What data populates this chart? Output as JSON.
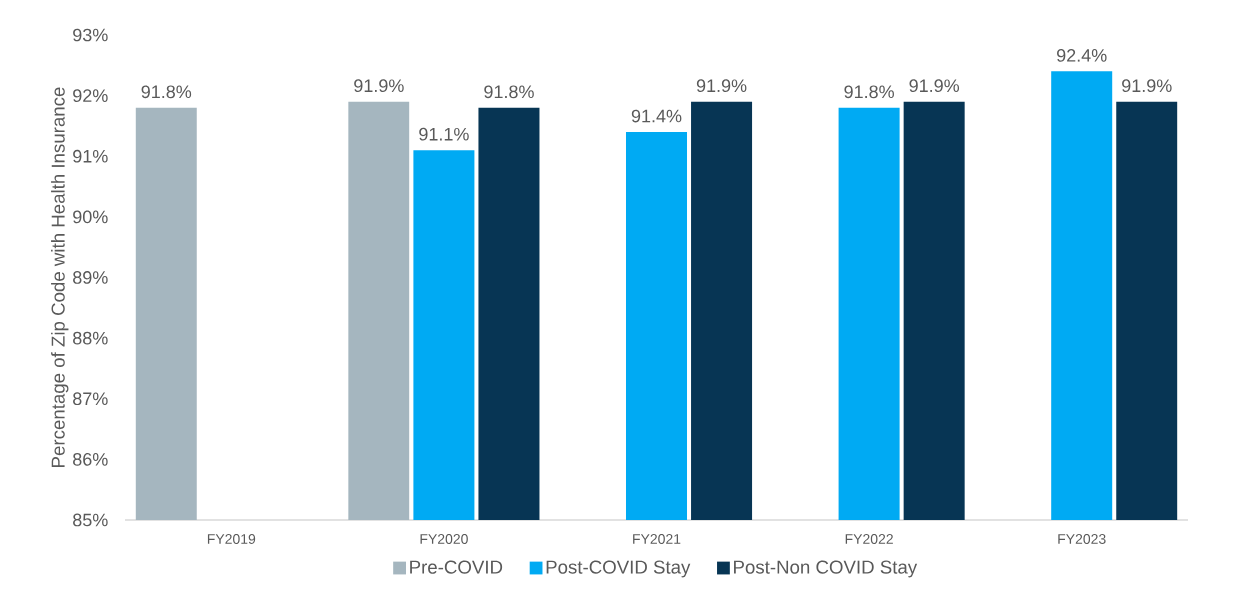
{
  "chart_data": {
    "type": "bar",
    "ylabel": "Percentage of Zip Code with Health Insurance",
    "categories": [
      "FY2019",
      "FY2020",
      "FY2021",
      "FY2022",
      "FY2023"
    ],
    "series": [
      {
        "name": "Pre-COVID",
        "color": "#a5b6bf",
        "values": [
          91.8,
          91.9,
          null,
          null,
          null
        ],
        "value_labels": [
          "91.8%",
          "91.9%",
          null,
          null,
          null
        ]
      },
      {
        "name": "Post-COVID Stay",
        "color": "#00aaf3",
        "values": [
          null,
          91.1,
          91.4,
          91.8,
          92.4
        ],
        "value_labels": [
          null,
          "91.1%",
          "91.4%",
          "91.8%",
          "92.4%"
        ]
      },
      {
        "name": "Post-Non COVID Stay",
        "color": "#073554",
        "values": [
          null,
          91.8,
          91.9,
          91.9,
          91.9
        ],
        "value_labels": [
          null,
          "91.8%",
          "91.9%",
          "91.9%",
          "91.9%"
        ]
      }
    ],
    "ylim": [
      85,
      93
    ],
    "yticks": [
      {
        "value": 85,
        "label": "85%"
      },
      {
        "value": 86,
        "label": "86%"
      },
      {
        "value": 87,
        "label": "87%"
      },
      {
        "value": 88,
        "label": "88%"
      },
      {
        "value": 89,
        "label": "89%"
      },
      {
        "value": 90,
        "label": "90%"
      },
      {
        "value": 91,
        "label": "91%"
      },
      {
        "value": 92,
        "label": "92%"
      },
      {
        "value": 93,
        "label": "93%"
      }
    ],
    "legend": "bottom"
  }
}
